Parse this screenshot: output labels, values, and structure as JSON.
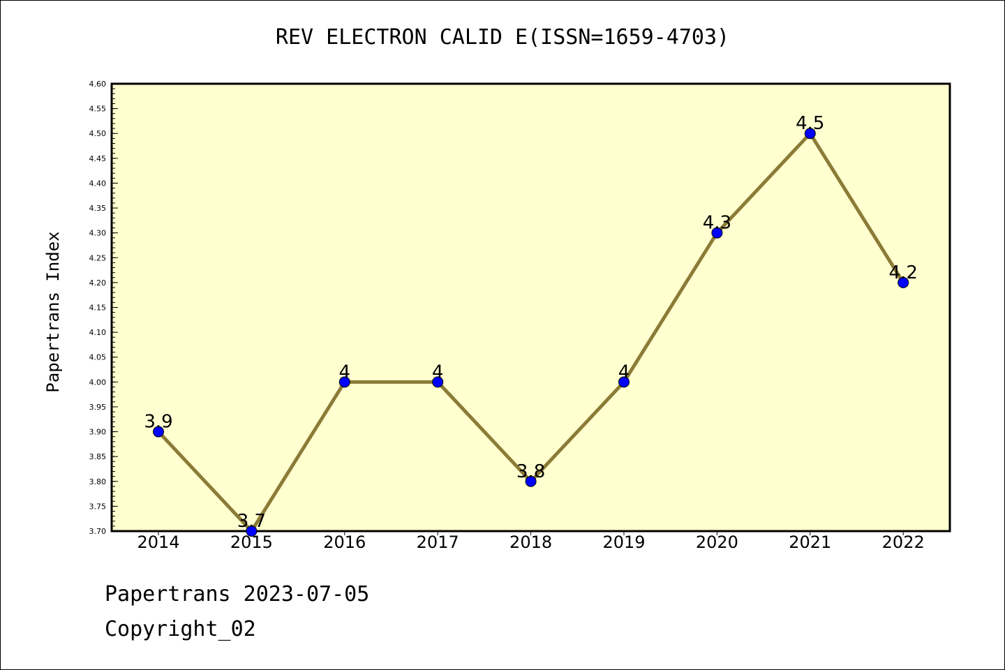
{
  "chart_data": {
    "type": "line",
    "title": "REV ELECTRON CALID E(ISSN=1659-4703)",
    "ylabel": "Papertrans Index",
    "xlabel": "",
    "categories": [
      "2014",
      "2015",
      "2016",
      "2017",
      "2018",
      "2019",
      "2020",
      "2021",
      "2022"
    ],
    "values": [
      3.9,
      3.7,
      4.0,
      4.0,
      3.8,
      4.0,
      4.3,
      4.5,
      4.2
    ],
    "data_labels": [
      "3.9",
      "3.7",
      "4",
      "4",
      "3.8",
      "4",
      "4.3",
      "4.5",
      "4.2"
    ],
    "ylim": [
      3.7,
      4.6
    ],
    "yticks": [
      "3.70",
      "3.75",
      "3.80",
      "3.85",
      "3.90",
      "3.95",
      "4.00",
      "4.05",
      "4.10",
      "4.15",
      "4.20",
      "4.25",
      "4.30",
      "4.35",
      "4.40",
      "4.45",
      "4.50",
      "4.55",
      "4.60"
    ],
    "grid": false,
    "colors": {
      "plot_background": "#ffffd0",
      "line": "#8b7b36",
      "marker": "#0000ff"
    }
  },
  "footer": {
    "line1": "Papertrans 2023-07-05",
    "line2": "Copyright_02"
  }
}
